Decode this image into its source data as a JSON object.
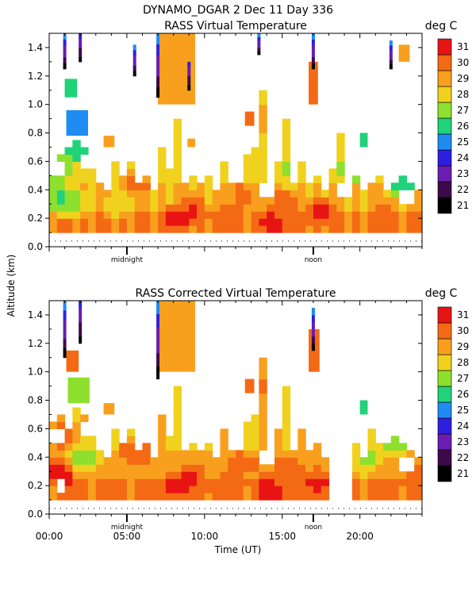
{
  "figure": {
    "header": "DYNAMO_DGAR    2 Dec 11 Day 336",
    "ylabel": "Altitude (km)",
    "xlabel": "Time (UT)"
  },
  "chart_data": [
    {
      "type": "heatmap",
      "title": "RASS Virtual Temperature",
      "xlabel": "Time (UT)",
      "ylabel": "Altitude (km)",
      "xlim": [
        0,
        24
      ],
      "ylim": [
        0,
        1.5
      ],
      "xticks": [
        0,
        5,
        10,
        15,
        20
      ],
      "xtick_labels": [
        "00:00",
        "05:00",
        "10:00",
        "15:00",
        "20:00"
      ],
      "xtick_labels_visible": false,
      "yticks": [
        0.0,
        0.2,
        0.4,
        0.6,
        0.8,
        1.0,
        1.2,
        1.4
      ],
      "ytick_labels": [
        "0.0",
        "0.2",
        "0.4",
        "0.6",
        "0.8",
        "1.0",
        "1.2",
        "1.4"
      ],
      "annotations": [
        {
          "x": 5,
          "text": "midnight"
        },
        {
          "x": 17,
          "text": "noon"
        }
      ],
      "colorbar": {
        "label": "deg C",
        "levels": [
          21,
          22,
          23,
          24,
          25,
          26,
          27,
          28,
          29,
          30,
          31
        ],
        "colors": [
          "#000000",
          "#3c0a4a",
          "#6a1db0",
          "#2e1fe0",
          "#1e8cf0",
          "#20d27a",
          "#8ee02e",
          "#f0d21e",
          "#f8a01e",
          "#f46a14",
          "#e81414"
        ]
      },
      "base_temp": 28.6,
      "top_height": [
        0.58,
        0.62,
        0.66,
        0.72,
        0.7,
        0.6,
        0.45,
        0.4,
        0.6,
        0.5,
        0.56,
        0.42,
        0.46,
        0.4,
        0.7,
        0.55,
        0.9,
        0.45,
        0.48,
        0.42,
        0.5,
        0.4,
        0.6,
        0.42,
        0.42,
        0.65,
        0.7,
        1.1,
        0.4,
        0.6,
        0.9,
        0.45,
        0.56,
        0.42,
        0.5,
        0.4,
        0.52,
        0.78,
        0.44,
        0.46,
        0.4,
        0.42,
        0.46,
        0.38,
        0.45,
        0.5,
        0.42,
        0.4
      ],
      "hot_spots": [
        {
          "x": 8.2,
          "y": 0.2,
          "t": 30.8
        },
        {
          "x": 9.2,
          "y": 0.25,
          "t": 30.6
        },
        {
          "x": 11.5,
          "y": 0.2,
          "t": 30.4
        },
        {
          "x": 14.5,
          "y": 0.18,
          "t": 31
        },
        {
          "x": 15.2,
          "y": 0.3,
          "t": 30.2
        },
        {
          "x": 17.5,
          "y": 0.25,
          "t": 30.8
        },
        {
          "x": 21.5,
          "y": 0.2,
          "t": 30.3
        },
        {
          "x": 12.5,
          "y": 0.35,
          "t": 30.0
        },
        {
          "x": 5.5,
          "y": 0.45,
          "t": 30.0
        },
        {
          "x": 7.2,
          "y": 1.25,
          "t": 30.4
        },
        {
          "x": 8.5,
          "y": 1.15,
          "t": 30.4
        },
        {
          "x": 12.8,
          "y": 0.9,
          "t": 30.8
        },
        {
          "x": 1.5,
          "y": 0.3,
          "t": 27.0
        },
        {
          "x": 0.6,
          "y": 0.35,
          "t": 26.4
        },
        {
          "x": 1.8,
          "y": 0.7,
          "t": 25.8
        },
        {
          "x": 0.4,
          "y": 0.55,
          "t": 26.4
        },
        {
          "x": 22.5,
          "y": 0.45,
          "t": 26.6
        },
        {
          "x": 19.5,
          "y": 0.55,
          "t": 26.8
        },
        {
          "x": 4.5,
          "y": 0.3,
          "t": 28.0
        },
        {
          "x": 15.8,
          "y": 0.55,
          "t": 27.4
        },
        {
          "x": 22.8,
          "y": 0.5,
          "t": 25.8
        }
      ],
      "holes": [
        {
          "x": 0.5,
          "y": 0.55,
          "r": 0.4
        },
        {
          "x": 14,
          "y": 0.4,
          "r": 0.4
        },
        {
          "x": 19,
          "y": 0.4,
          "r": 0.4
        },
        {
          "x": 23,
          "y": 0.35,
          "r": 0.4
        },
        {
          "x": 2.7,
          "y": 0.6,
          "r": 0.6
        }
      ],
      "gaps": [],
      "spikes": [
        {
          "x": 1.0,
          "y0": 1.25,
          "y1": 1.5,
          "t0": 21,
          "t1": 25
        },
        {
          "x": 2.0,
          "y0": 1.3,
          "y1": 1.5,
          "t0": 21,
          "t1": 24
        },
        {
          "x": 5.5,
          "y0": 1.2,
          "y1": 1.42,
          "t0": 21,
          "t1": 25
        },
        {
          "x": 7.0,
          "y0": 1.05,
          "y1": 1.5,
          "t0": 21,
          "t1": 25
        },
        {
          "x": 9.0,
          "y0": 1.1,
          "y1": 1.3,
          "t0": 21,
          "t1": 24
        },
        {
          "x": 13.5,
          "y0": 1.35,
          "y1": 1.5,
          "t0": 21,
          "t1": 25
        },
        {
          "x": 17.0,
          "y0": 1.25,
          "y1": 1.5,
          "t0": 21,
          "t1": 25
        },
        {
          "x": 22.0,
          "y0": 1.25,
          "y1": 1.45,
          "t0": 21,
          "t1": 25
        }
      ],
      "fragments": [
        {
          "x0": 1.0,
          "x1": 1.8,
          "y0": 1.05,
          "y1": 1.18,
          "t": 26.2
        },
        {
          "x0": 1.1,
          "x1": 2.5,
          "y0": 0.78,
          "y1": 0.96,
          "t": 25.4
        },
        {
          "x0": 3.5,
          "x1": 4.2,
          "y0": 0.7,
          "y1": 0.78,
          "t": 28.8
        },
        {
          "x0": 8.9,
          "x1": 9.4,
          "y0": 0.7,
          "y1": 0.76,
          "t": 28.6
        },
        {
          "x0": 7.0,
          "x1": 9.4,
          "y0": 1.0,
          "y1": 1.5,
          "t": 29.2
        },
        {
          "x0": 12.6,
          "x1": 13.2,
          "y0": 0.85,
          "y1": 0.95,
          "t": 30.4
        },
        {
          "x0": 22.5,
          "x1": 23.2,
          "y0": 1.3,
          "y1": 1.42,
          "t": 28.6
        },
        {
          "x0": 16.7,
          "x1": 17.3,
          "y0": 1.0,
          "y1": 1.3,
          "t": 29.6
        },
        {
          "x0": 20.0,
          "x1": 20.5,
          "y0": 0.7,
          "y1": 0.8,
          "t": 26.4
        }
      ]
    },
    {
      "type": "heatmap",
      "title": "RASS Corrected Virtual Temperature",
      "xlabel": "Time (UT)",
      "ylabel": "Altitude (km)",
      "xlim": [
        0,
        24
      ],
      "ylim": [
        0,
        1.5
      ],
      "xticks": [
        0,
        5,
        10,
        15,
        20
      ],
      "xtick_labels": [
        "00:00",
        "05:00",
        "10:00",
        "15:00",
        "20:00"
      ],
      "xtick_labels_visible": true,
      "yticks": [
        0.0,
        0.2,
        0.4,
        0.6,
        0.8,
        1.0,
        1.2,
        1.4
      ],
      "ytick_labels": [
        "0.0",
        "0.2",
        "0.4",
        "0.6",
        "0.8",
        "1.0",
        "1.2",
        "1.4"
      ],
      "annotations": [
        {
          "x": 5,
          "text": "midnight"
        },
        {
          "x": 17,
          "text": "noon"
        }
      ],
      "colorbar": {
        "label": "deg C",
        "levels": [
          21,
          22,
          23,
          24,
          25,
          26,
          27,
          28,
          29,
          30,
          31
        ],
        "colors": [
          "#000000",
          "#3c0a4a",
          "#6a1db0",
          "#2e1fe0",
          "#1e8cf0",
          "#20d27a",
          "#8ee02e",
          "#f0d21e",
          "#f8a01e",
          "#f46a14",
          "#e81414"
        ]
      },
      "base_temp": 28.9,
      "top_height": [
        0.62,
        0.66,
        0.6,
        0.72,
        0.7,
        0.58,
        0.45,
        0.4,
        0.6,
        0.5,
        0.56,
        0.42,
        0.46,
        0.4,
        0.7,
        0.55,
        0.9,
        0.45,
        0.48,
        0.42,
        0.5,
        0.4,
        0.6,
        0.42,
        0.42,
        0.65,
        0.7,
        1.1,
        0.4,
        0.6,
        0.9,
        0.45,
        0.56,
        0.42,
        0.5,
        0.4,
        0.52,
        0.78,
        0.44,
        0.5,
        0.4,
        0.6,
        0.5,
        0.48,
        0.55,
        0.5,
        0.42,
        0.4
      ],
      "hot_spots": [
        {
          "x": 0.6,
          "y": 0.3,
          "t": 31
        },
        {
          "x": 0.8,
          "y": 0.55,
          "t": 30.8
        },
        {
          "x": 1.8,
          "y": 1.05,
          "t": 30.8
        },
        {
          "x": 8.2,
          "y": 0.2,
          "t": 30.8
        },
        {
          "x": 9.2,
          "y": 0.25,
          "t": 30.6
        },
        {
          "x": 11.5,
          "y": 0.2,
          "t": 30.4
        },
        {
          "x": 14.5,
          "y": 0.18,
          "t": 31
        },
        {
          "x": 15.2,
          "y": 0.3,
          "t": 30.2
        },
        {
          "x": 17.3,
          "y": 0.22,
          "t": 30.8
        },
        {
          "x": 12.5,
          "y": 0.35,
          "t": 30.0
        },
        {
          "x": 5.5,
          "y": 0.45,
          "t": 30.2
        },
        {
          "x": 7.2,
          "y": 1.25,
          "t": 30.4
        },
        {
          "x": 8.5,
          "y": 1.15,
          "t": 30.4
        },
        {
          "x": 12.8,
          "y": 0.9,
          "t": 30.8
        },
        {
          "x": 2.2,
          "y": 0.4,
          "t": 27.2
        },
        {
          "x": 20.5,
          "y": 0.4,
          "t": 27.2
        },
        {
          "x": 22.3,
          "y": 0.5,
          "t": 27.0
        },
        {
          "x": 23.1,
          "y": 0.3,
          "t": 29.6
        }
      ],
      "holes": [
        {
          "x": 0.5,
          "y": 0.55,
          "r": 0.4
        },
        {
          "x": 14,
          "y": 0.4,
          "r": 0.4
        },
        {
          "x": 23,
          "y": 0.35,
          "r": 0.4
        },
        {
          "x": 2.8,
          "y": 0.6,
          "r": 0.6
        },
        {
          "x": 0.8,
          "y": 0.2,
          "r": 0.35
        }
      ],
      "gaps": [
        [
          17.9,
          19.4
        ]
      ],
      "spikes": [
        {
          "x": 1.0,
          "y0": 1.1,
          "y1": 1.5,
          "t0": 21,
          "t1": 25
        },
        {
          "x": 2.0,
          "y0": 1.2,
          "y1": 1.5,
          "t0": 21,
          "t1": 24
        },
        {
          "x": 7.0,
          "y0": 0.95,
          "y1": 1.5,
          "t0": 21,
          "t1": 25
        },
        {
          "x": 17.0,
          "y0": 1.15,
          "y1": 1.45,
          "t0": 21,
          "t1": 25
        }
      ],
      "fragments": [
        {
          "x0": 1.2,
          "x1": 2.6,
          "y0": 0.78,
          "y1": 0.96,
          "t": 27.2
        },
        {
          "x0": 1.1,
          "x1": 1.9,
          "y0": 1.0,
          "y1": 1.15,
          "t": 30.2
        },
        {
          "x0": 3.5,
          "x1": 4.2,
          "y0": 0.7,
          "y1": 0.78,
          "t": 28.8
        },
        {
          "x0": 7.0,
          "x1": 9.4,
          "y0": 1.0,
          "y1": 1.5,
          "t": 29.2
        },
        {
          "x0": 12.6,
          "x1": 13.2,
          "y0": 0.85,
          "y1": 0.95,
          "t": 30.4
        },
        {
          "x0": 16.7,
          "x1": 17.4,
          "y0": 1.0,
          "y1": 1.3,
          "t": 29.8
        },
        {
          "x0": 20.0,
          "x1": 20.5,
          "y0": 0.7,
          "y1": 0.8,
          "t": 26.4
        }
      ]
    }
  ]
}
